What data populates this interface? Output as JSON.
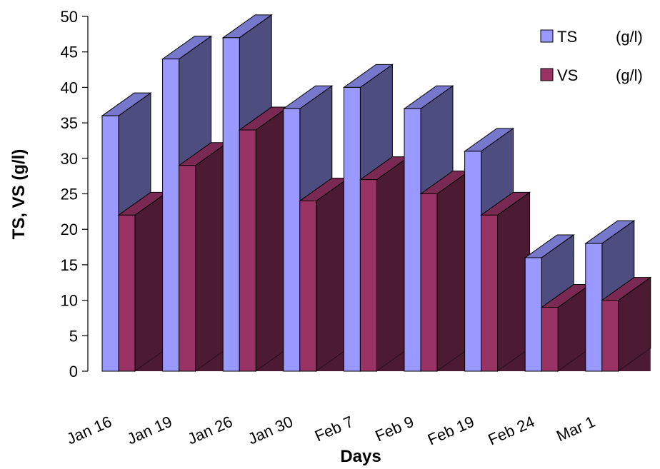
{
  "chart_data": {
    "type": "bar",
    "style": "3d-clustered-column",
    "categories": [
      "Jan 16",
      "Jan 19",
      "Jan 26",
      "Jan 30",
      "Feb 7",
      "Feb 9",
      "Feb 19",
      "Feb 24",
      "Mar 1"
    ],
    "series": [
      {
        "name": "TS",
        "unit": "(g/l)",
        "values": [
          36,
          44,
          47,
          37,
          40,
          37,
          31,
          16,
          18
        ]
      },
      {
        "name": "VS",
        "unit": "(g/l)",
        "values": [
          22,
          29,
          34,
          24,
          27,
          25,
          22,
          9,
          10
        ]
      }
    ],
    "xlabel": "Days",
    "ylabel": "TS, VS (g/l)",
    "ylim": [
      0,
      50
    ],
    "yticks": [
      0,
      5,
      10,
      15,
      20,
      25,
      30,
      35,
      40,
      45,
      50
    ],
    "grid": false,
    "legend_position": "top-right",
    "colors": {
      "TS": {
        "front": "#9999ff",
        "side": "#4d4d80",
        "top": "#7777cc"
      },
      "VS": {
        "front": "#993366",
        "side": "#4d1a33",
        "top": "#7a2952"
      },
      "outline": "#000000"
    }
  }
}
